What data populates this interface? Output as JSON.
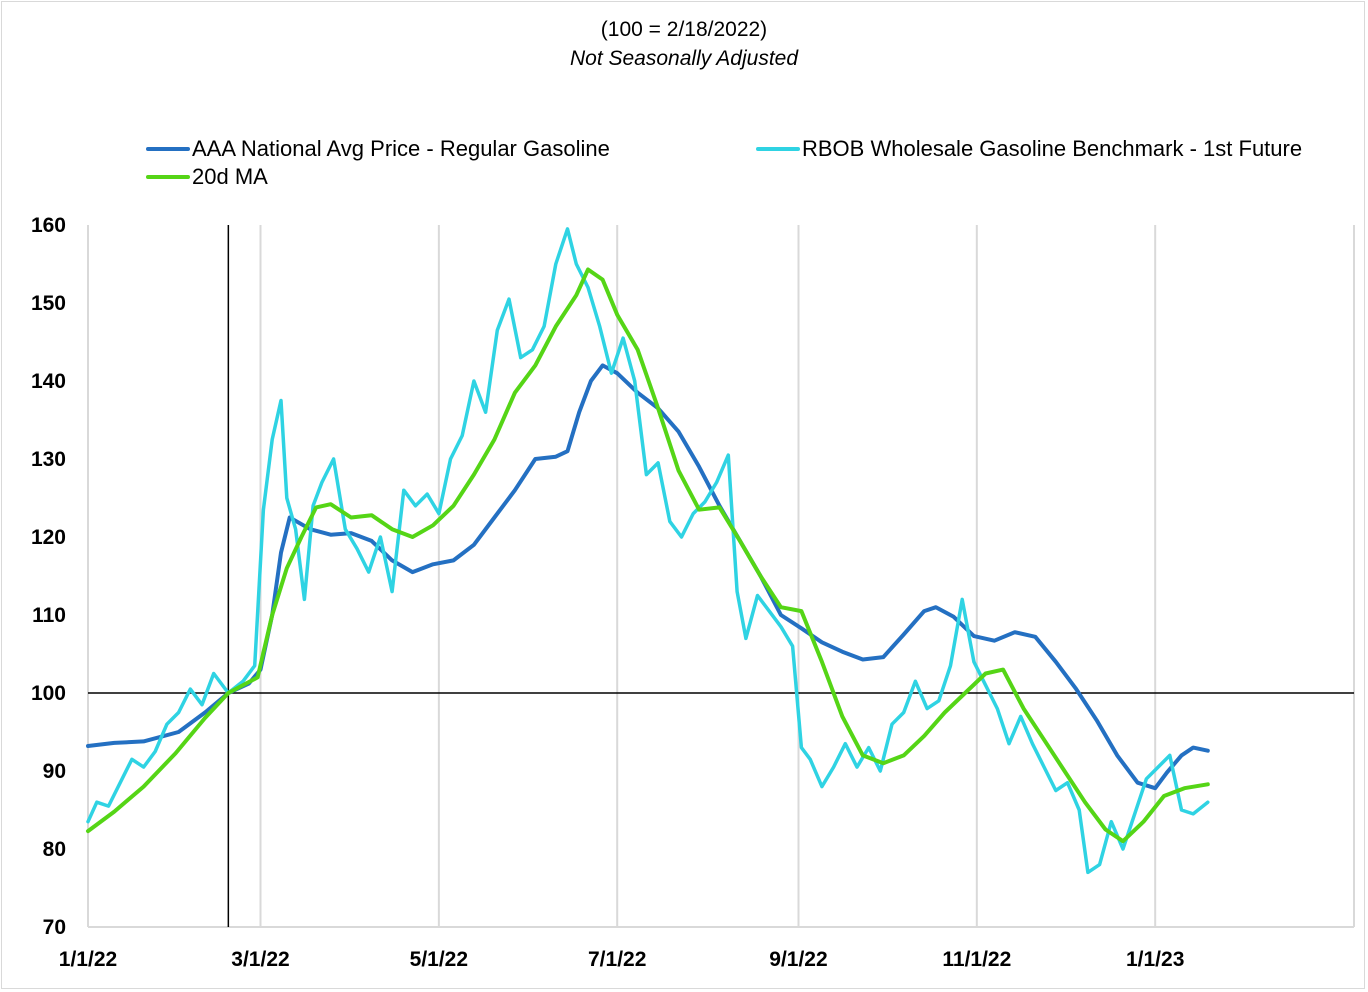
{
  "colors": {
    "aaa": "#2470c2",
    "rbob": "#2fd3e3",
    "ma": "#55d516",
    "grid": "#d9d9d9",
    "axis": "#000000"
  },
  "chart_data": {
    "type": "line",
    "title": "(100 = 2/18/2022)",
    "subtitle": "Not Seasonally Adjusted",
    "xlabel": "",
    "ylabel": "",
    "x_ticks": [
      "2022-01-01",
      "2022-03-01",
      "2022-05-01",
      "2022-07-01",
      "2022-09-01",
      "2022-11-01",
      "2023-01-01"
    ],
    "x_tick_labels": [
      "1/1/22",
      "3/1/22",
      "5/1/22",
      "7/1/22",
      "9/1/22",
      "11/1/22",
      "1/1/23"
    ],
    "xlim": [
      "2022-01-01",
      "2023-03-10"
    ],
    "ylim": [
      70,
      160
    ],
    "y_ticks": [
      70,
      80,
      90,
      100,
      110,
      120,
      130,
      140,
      150,
      160
    ],
    "reference_lines": {
      "y": 100,
      "x": "2022-02-18"
    },
    "grid": "vertical",
    "legend_position": "top",
    "series": [
      {
        "name": "AAA National Avg Price - Regular Gasoline",
        "color_key": "aaa",
        "points": [
          [
            "2022-01-01",
            93.2
          ],
          [
            "2022-01-10",
            93.6
          ],
          [
            "2022-01-20",
            93.8
          ],
          [
            "2022-02-01",
            95.0
          ],
          [
            "2022-02-10",
            97.5
          ],
          [
            "2022-02-18",
            100.0
          ],
          [
            "2022-02-25",
            101.2
          ],
          [
            "2022-03-01",
            103.0
          ],
          [
            "2022-03-05",
            110.0
          ],
          [
            "2022-03-08",
            118.0
          ],
          [
            "2022-03-11",
            122.5
          ],
          [
            "2022-03-18",
            121.0
          ],
          [
            "2022-03-25",
            120.3
          ],
          [
            "2022-04-01",
            120.5
          ],
          [
            "2022-04-08",
            119.5
          ],
          [
            "2022-04-15",
            117.0
          ],
          [
            "2022-04-22",
            115.5
          ],
          [
            "2022-04-29",
            116.5
          ],
          [
            "2022-05-06",
            117.0
          ],
          [
            "2022-05-13",
            119.0
          ],
          [
            "2022-05-20",
            122.5
          ],
          [
            "2022-05-27",
            126.0
          ],
          [
            "2022-06-03",
            130.0
          ],
          [
            "2022-06-10",
            130.3
          ],
          [
            "2022-06-14",
            131.0
          ],
          [
            "2022-06-18",
            136.0
          ],
          [
            "2022-06-22",
            140.0
          ],
          [
            "2022-06-26",
            142.0
          ],
          [
            "2022-07-01",
            141.0
          ],
          [
            "2022-07-08",
            138.5
          ],
          [
            "2022-07-15",
            136.5
          ],
          [
            "2022-07-22",
            133.5
          ],
          [
            "2022-07-29",
            129.0
          ],
          [
            "2022-08-05",
            124.0
          ],
          [
            "2022-08-12",
            119.5
          ],
          [
            "2022-08-19",
            115.0
          ],
          [
            "2022-08-26",
            110.0
          ],
          [
            "2022-09-02",
            108.3
          ],
          [
            "2022-09-09",
            106.5
          ],
          [
            "2022-09-16",
            105.3
          ],
          [
            "2022-09-23",
            104.3
          ],
          [
            "2022-09-30",
            104.6
          ],
          [
            "2022-10-07",
            107.5
          ],
          [
            "2022-10-14",
            110.5
          ],
          [
            "2022-10-18",
            111.0
          ],
          [
            "2022-10-24",
            109.8
          ],
          [
            "2022-10-31",
            107.3
          ],
          [
            "2022-11-07",
            106.7
          ],
          [
            "2022-11-14",
            107.8
          ],
          [
            "2022-11-21",
            107.2
          ],
          [
            "2022-11-28",
            104.0
          ],
          [
            "2022-12-05",
            100.5
          ],
          [
            "2022-12-12",
            96.5
          ],
          [
            "2022-12-19",
            92.0
          ],
          [
            "2022-12-26",
            88.5
          ],
          [
            "2023-01-01",
            87.8
          ],
          [
            "2023-01-05",
            89.8
          ],
          [
            "2023-01-10",
            92.0
          ],
          [
            "2023-01-14",
            93.0
          ],
          [
            "2023-01-19",
            92.6
          ]
        ]
      },
      {
        "name": "RBOB Wholesale Gasoline Benchmark - 1st Future",
        "color_key": "rbob",
        "points": [
          [
            "2022-01-01",
            83.5
          ],
          [
            "2022-01-04",
            86.0
          ],
          [
            "2022-01-08",
            85.5
          ],
          [
            "2022-01-12",
            88.5
          ],
          [
            "2022-01-16",
            91.5
          ],
          [
            "2022-01-20",
            90.5
          ],
          [
            "2022-01-24",
            92.5
          ],
          [
            "2022-01-28",
            96.0
          ],
          [
            "2022-02-01",
            97.5
          ],
          [
            "2022-02-05",
            100.5
          ],
          [
            "2022-02-09",
            98.5
          ],
          [
            "2022-02-13",
            102.5
          ],
          [
            "2022-02-18",
            100.0
          ],
          [
            "2022-02-23",
            101.5
          ],
          [
            "2022-02-27",
            103.5
          ],
          [
            "2022-03-02",
            123.5
          ],
          [
            "2022-03-05",
            132.5
          ],
          [
            "2022-03-08",
            137.5
          ],
          [
            "2022-03-10",
            125.0
          ],
          [
            "2022-03-13",
            121.0
          ],
          [
            "2022-03-16",
            112.0
          ],
          [
            "2022-03-19",
            124.0
          ],
          [
            "2022-03-22",
            127.0
          ],
          [
            "2022-03-26",
            130.0
          ],
          [
            "2022-03-30",
            121.0
          ],
          [
            "2022-04-03",
            118.5
          ],
          [
            "2022-04-07",
            115.5
          ],
          [
            "2022-04-11",
            120.0
          ],
          [
            "2022-04-15",
            113.0
          ],
          [
            "2022-04-19",
            126.0
          ],
          [
            "2022-04-23",
            124.0
          ],
          [
            "2022-04-27",
            125.5
          ],
          [
            "2022-05-01",
            123.0
          ],
          [
            "2022-05-05",
            130.0
          ],
          [
            "2022-05-09",
            133.0
          ],
          [
            "2022-05-13",
            140.0
          ],
          [
            "2022-05-17",
            136.0
          ],
          [
            "2022-05-21",
            146.5
          ],
          [
            "2022-05-25",
            150.5
          ],
          [
            "2022-05-29",
            143.0
          ],
          [
            "2022-06-02",
            144.0
          ],
          [
            "2022-06-06",
            147.0
          ],
          [
            "2022-06-10",
            155.0
          ],
          [
            "2022-06-14",
            159.5
          ],
          [
            "2022-06-17",
            155.0
          ],
          [
            "2022-06-21",
            152.0
          ],
          [
            "2022-06-25",
            147.0
          ],
          [
            "2022-06-29",
            141.0
          ],
          [
            "2022-07-03",
            145.5
          ],
          [
            "2022-07-07",
            140.0
          ],
          [
            "2022-07-11",
            128.0
          ],
          [
            "2022-07-15",
            129.5
          ],
          [
            "2022-07-19",
            122.0
          ],
          [
            "2022-07-23",
            120.0
          ],
          [
            "2022-07-27",
            123.0
          ],
          [
            "2022-07-31",
            124.5
          ],
          [
            "2022-08-04",
            127.0
          ],
          [
            "2022-08-08",
            130.5
          ],
          [
            "2022-08-11",
            113.0
          ],
          [
            "2022-08-14",
            107.0
          ],
          [
            "2022-08-18",
            112.5
          ],
          [
            "2022-08-22",
            110.5
          ],
          [
            "2022-08-26",
            108.5
          ],
          [
            "2022-08-30",
            106.0
          ],
          [
            "2022-09-02",
            93.0
          ],
          [
            "2022-09-05",
            91.5
          ],
          [
            "2022-09-09",
            88.0
          ],
          [
            "2022-09-13",
            90.5
          ],
          [
            "2022-09-17",
            93.5
          ],
          [
            "2022-09-21",
            90.5
          ],
          [
            "2022-09-25",
            93.0
          ],
          [
            "2022-09-29",
            90.0
          ],
          [
            "2022-10-03",
            96.0
          ],
          [
            "2022-10-07",
            97.5
          ],
          [
            "2022-10-11",
            101.5
          ],
          [
            "2022-10-15",
            98.0
          ],
          [
            "2022-10-19",
            99.0
          ],
          [
            "2022-10-23",
            103.5
          ],
          [
            "2022-10-27",
            112.0
          ],
          [
            "2022-10-31",
            104.0
          ],
          [
            "2022-11-04",
            101.0
          ],
          [
            "2022-11-08",
            98.0
          ],
          [
            "2022-11-12",
            93.5
          ],
          [
            "2022-11-16",
            97.0
          ],
          [
            "2022-11-20",
            93.5
          ],
          [
            "2022-11-24",
            90.5
          ],
          [
            "2022-11-28",
            87.5
          ],
          [
            "2022-12-02",
            88.5
          ],
          [
            "2022-12-06",
            85.0
          ],
          [
            "2022-12-09",
            77.0
          ],
          [
            "2022-12-13",
            78.0
          ],
          [
            "2022-12-17",
            83.5
          ],
          [
            "2022-12-21",
            80.0
          ],
          [
            "2022-12-25",
            84.5
          ],
          [
            "2022-12-29",
            89.0
          ],
          [
            "2023-01-02",
            90.5
          ],
          [
            "2023-01-06",
            92.0
          ],
          [
            "2023-01-10",
            85.0
          ],
          [
            "2023-01-14",
            84.5
          ],
          [
            "2023-01-19",
            86.0
          ]
        ]
      },
      {
        "name": "20d MA",
        "color_key": "ma",
        "points": [
          [
            "2022-01-01",
            82.3
          ],
          [
            "2022-01-10",
            84.8
          ],
          [
            "2022-01-20",
            88.0
          ],
          [
            "2022-01-31",
            92.3
          ],
          [
            "2022-02-10",
            96.8
          ],
          [
            "2022-02-18",
            100.0
          ],
          [
            "2022-02-28",
            102.0
          ],
          [
            "2022-03-05",
            110.0
          ],
          [
            "2022-03-10",
            116.0
          ],
          [
            "2022-03-15",
            120.0
          ],
          [
            "2022-03-20",
            123.8
          ],
          [
            "2022-03-25",
            124.2
          ],
          [
            "2022-04-01",
            122.5
          ],
          [
            "2022-04-08",
            122.8
          ],
          [
            "2022-04-15",
            121.0
          ],
          [
            "2022-04-22",
            120.0
          ],
          [
            "2022-04-29",
            121.5
          ],
          [
            "2022-05-06",
            124.0
          ],
          [
            "2022-05-13",
            128.0
          ],
          [
            "2022-05-20",
            132.5
          ],
          [
            "2022-05-27",
            138.5
          ],
          [
            "2022-06-03",
            142.0
          ],
          [
            "2022-06-10",
            147.0
          ],
          [
            "2022-06-17",
            151.0
          ],
          [
            "2022-06-21",
            154.3
          ],
          [
            "2022-06-26",
            153.0
          ],
          [
            "2022-07-01",
            148.5
          ],
          [
            "2022-07-08",
            144.0
          ],
          [
            "2022-07-15",
            136.5
          ],
          [
            "2022-07-22",
            128.5
          ],
          [
            "2022-07-29",
            123.5
          ],
          [
            "2022-08-05",
            123.8
          ],
          [
            "2022-08-12",
            119.5
          ],
          [
            "2022-08-19",
            115.0
          ],
          [
            "2022-08-26",
            111.0
          ],
          [
            "2022-09-02",
            110.5
          ],
          [
            "2022-09-09",
            104.0
          ],
          [
            "2022-09-16",
            97.0
          ],
          [
            "2022-09-23",
            92.0
          ],
          [
            "2022-09-30",
            91.0
          ],
          [
            "2022-10-07",
            92.0
          ],
          [
            "2022-10-14",
            94.5
          ],
          [
            "2022-10-21",
            97.5
          ],
          [
            "2022-10-28",
            100.0
          ],
          [
            "2022-11-04",
            102.5
          ],
          [
            "2022-11-10",
            103.0
          ],
          [
            "2022-11-17",
            98.0
          ],
          [
            "2022-11-24",
            94.0
          ],
          [
            "2022-12-01",
            90.0
          ],
          [
            "2022-12-08",
            86.0
          ],
          [
            "2022-12-15",
            82.5
          ],
          [
            "2022-12-21",
            81.0
          ],
          [
            "2022-12-28",
            83.5
          ],
          [
            "2023-01-04",
            86.8
          ],
          [
            "2023-01-11",
            87.8
          ],
          [
            "2023-01-19",
            88.3
          ]
        ]
      }
    ]
  }
}
